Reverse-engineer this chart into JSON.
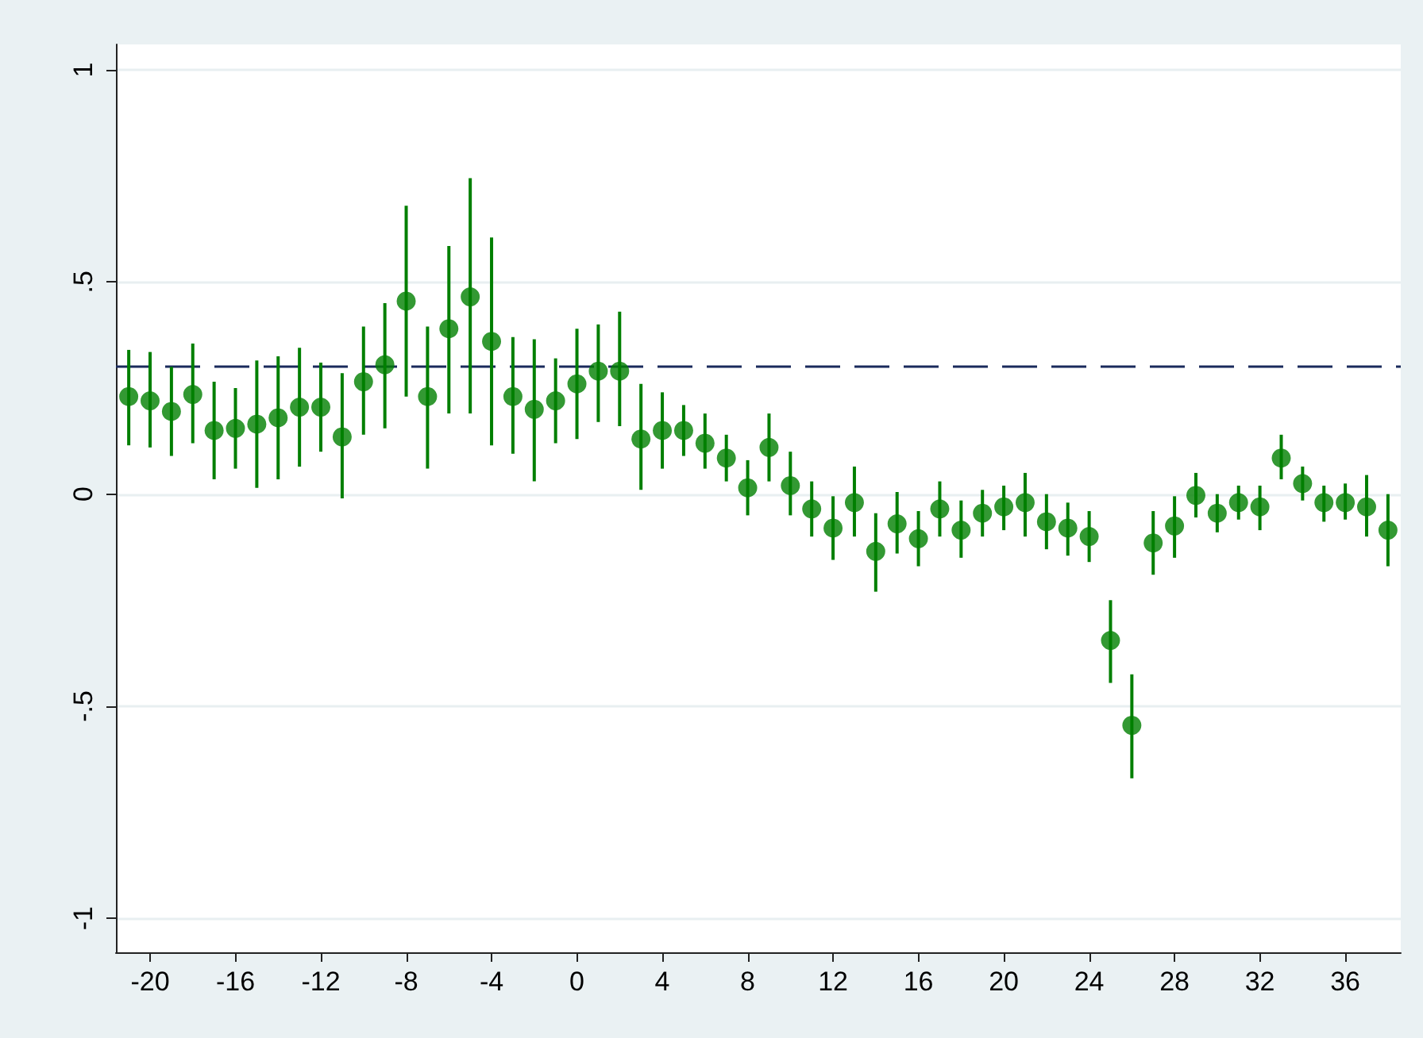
{
  "chart_data": {
    "type": "scatter",
    "marker": "circle",
    "grid": "y",
    "xlim": [
      -21.6,
      38.6
    ],
    "xticks": [
      -20,
      -16,
      -12,
      -8,
      -4,
      0,
      4,
      8,
      12,
      16,
      20,
      24,
      28,
      32,
      36
    ],
    "ylim": [
      -1.08,
      1.06
    ],
    "yticks": [
      {
        "value": -1,
        "label": "-1"
      },
      {
        "value": -0.5,
        "label": "-.5"
      },
      0,
      {
        "value": 0.5,
        "label": ".5"
      },
      1
    ],
    "ref_lines": [
      {
        "axis": "y",
        "value": 0.3,
        "color": "#1a2a5c",
        "line_style": "dashed"
      }
    ],
    "series": [
      {
        "color": "#007f00",
        "x": [
          -21,
          -20,
          -19,
          -18,
          -17,
          -16,
          -15,
          -14,
          -13,
          -12,
          -11,
          -10,
          -9,
          -8,
          -7,
          -6,
          -5,
          -4,
          -3,
          -2,
          -1,
          0,
          1,
          2,
          3,
          4,
          5,
          6,
          7,
          8,
          9,
          10,
          11,
          12,
          13,
          14,
          15,
          16,
          17,
          18,
          19,
          20,
          21,
          22,
          23,
          24,
          25,
          26,
          27,
          28,
          29,
          30,
          31,
          32,
          33,
          34,
          35,
          36,
          37,
          38
        ],
        "values": [
          0.23,
          0.22,
          0.195,
          0.235,
          0.15,
          0.155,
          0.165,
          0.18,
          0.205,
          0.205,
          0.135,
          0.265,
          0.305,
          0.455,
          0.23,
          0.39,
          0.465,
          0.36,
          0.23,
          0.2,
          0.22,
          0.26,
          0.29,
          0.29,
          0.13,
          0.15,
          0.15,
          0.12,
          0.085,
          0.015,
          0.11,
          0.02,
          -0.035,
          -0.08,
          -0.02,
          -0.135,
          -0.07,
          -0.105,
          -0.035,
          -0.085,
          -0.045,
          -0.03,
          -0.02,
          -0.065,
          -0.08,
          -0.1,
          -0.345,
          -0.545,
          -0.115,
          -0.075,
          -0.003,
          -0.045,
          -0.02,
          -0.03,
          0.085,
          0.025,
          -0.02,
          -0.02,
          -0.03,
          -0.085
        ],
        "errors": [
          [
            0.115,
            0.34
          ],
          [
            0.11,
            0.335
          ],
          [
            0.09,
            0.3
          ],
          [
            0.12,
            0.355
          ],
          [
            0.035,
            0.265
          ],
          [
            0.06,
            0.25
          ],
          [
            0.015,
            0.315
          ],
          [
            0.035,
            0.325
          ],
          [
            0.065,
            0.345
          ],
          [
            0.1,
            0.31
          ],
          [
            -0.01,
            0.285
          ],
          [
            0.14,
            0.395
          ],
          [
            0.155,
            0.45
          ],
          [
            0.23,
            0.68
          ],
          [
            0.06,
            0.395
          ],
          [
            0.19,
            0.585
          ],
          [
            0.19,
            0.745
          ],
          [
            0.115,
            0.605
          ],
          [
            0.095,
            0.37
          ],
          [
            0.03,
            0.365
          ],
          [
            0.12,
            0.32
          ],
          [
            0.13,
            0.39
          ],
          [
            0.17,
            0.4
          ],
          [
            0.16,
            0.43
          ],
          [
            0.01,
            0.26
          ],
          [
            0.06,
            0.24
          ],
          [
            0.09,
            0.21
          ],
          [
            0.06,
            0.19
          ],
          [
            0.03,
            0.14
          ],
          [
            -0.05,
            0.08
          ],
          [
            0.03,
            0.19
          ],
          [
            -0.05,
            0.1
          ],
          [
            -0.1,
            0.03
          ],
          [
            -0.155,
            -0.005
          ],
          [
            -0.1,
            0.065
          ],
          [
            -0.23,
            -0.045
          ],
          [
            -0.14,
            0.005
          ],
          [
            -0.17,
            -0.04
          ],
          [
            -0.1,
            0.03
          ],
          [
            -0.15,
            -0.015
          ],
          [
            -0.1,
            0.01
          ],
          [
            -0.085,
            0.02
          ],
          [
            -0.1,
            0.05
          ],
          [
            -0.13,
            0
          ],
          [
            -0.145,
            -0.02
          ],
          [
            -0.16,
            -0.04
          ],
          [
            -0.445,
            -0.25
          ],
          [
            -0.67,
            -0.425
          ],
          [
            -0.19,
            -0.04
          ],
          [
            -0.15,
            -0.005
          ],
          [
            -0.055,
            0.05
          ],
          [
            -0.09,
            0
          ],
          [
            -0.06,
            0.02
          ],
          [
            -0.085,
            0.02
          ],
          [
            0.035,
            0.14
          ],
          [
            -0.015,
            0.065
          ],
          [
            -0.065,
            0.02
          ],
          [
            -0.06,
            0.025
          ],
          [
            -0.1,
            0.045
          ],
          [
            -0.17,
            0
          ]
        ]
      }
    ]
  }
}
